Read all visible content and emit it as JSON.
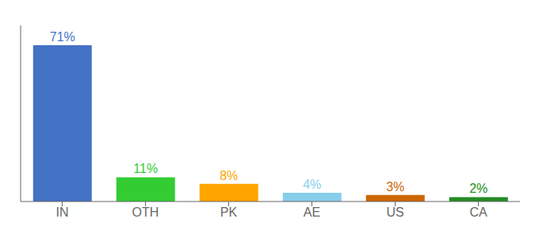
{
  "chart_data": {
    "type": "bar",
    "categories": [
      "IN",
      "OTH",
      "PK",
      "AE",
      "US",
      "CA"
    ],
    "values": [
      71,
      11,
      8,
      4,
      3,
      2
    ],
    "value_labels": [
      "71%",
      "11%",
      "8%",
      "4%",
      "3%",
      "2%"
    ],
    "data_labels": true,
    "colors": [
      "#4472C4",
      "#33CC33",
      "#FFA500",
      "#87CEEB",
      "#CC6600",
      "#228B22"
    ],
    "ylim": [
      0,
      80
    ],
    "tick_labels": "x",
    "grid": false
  }
}
